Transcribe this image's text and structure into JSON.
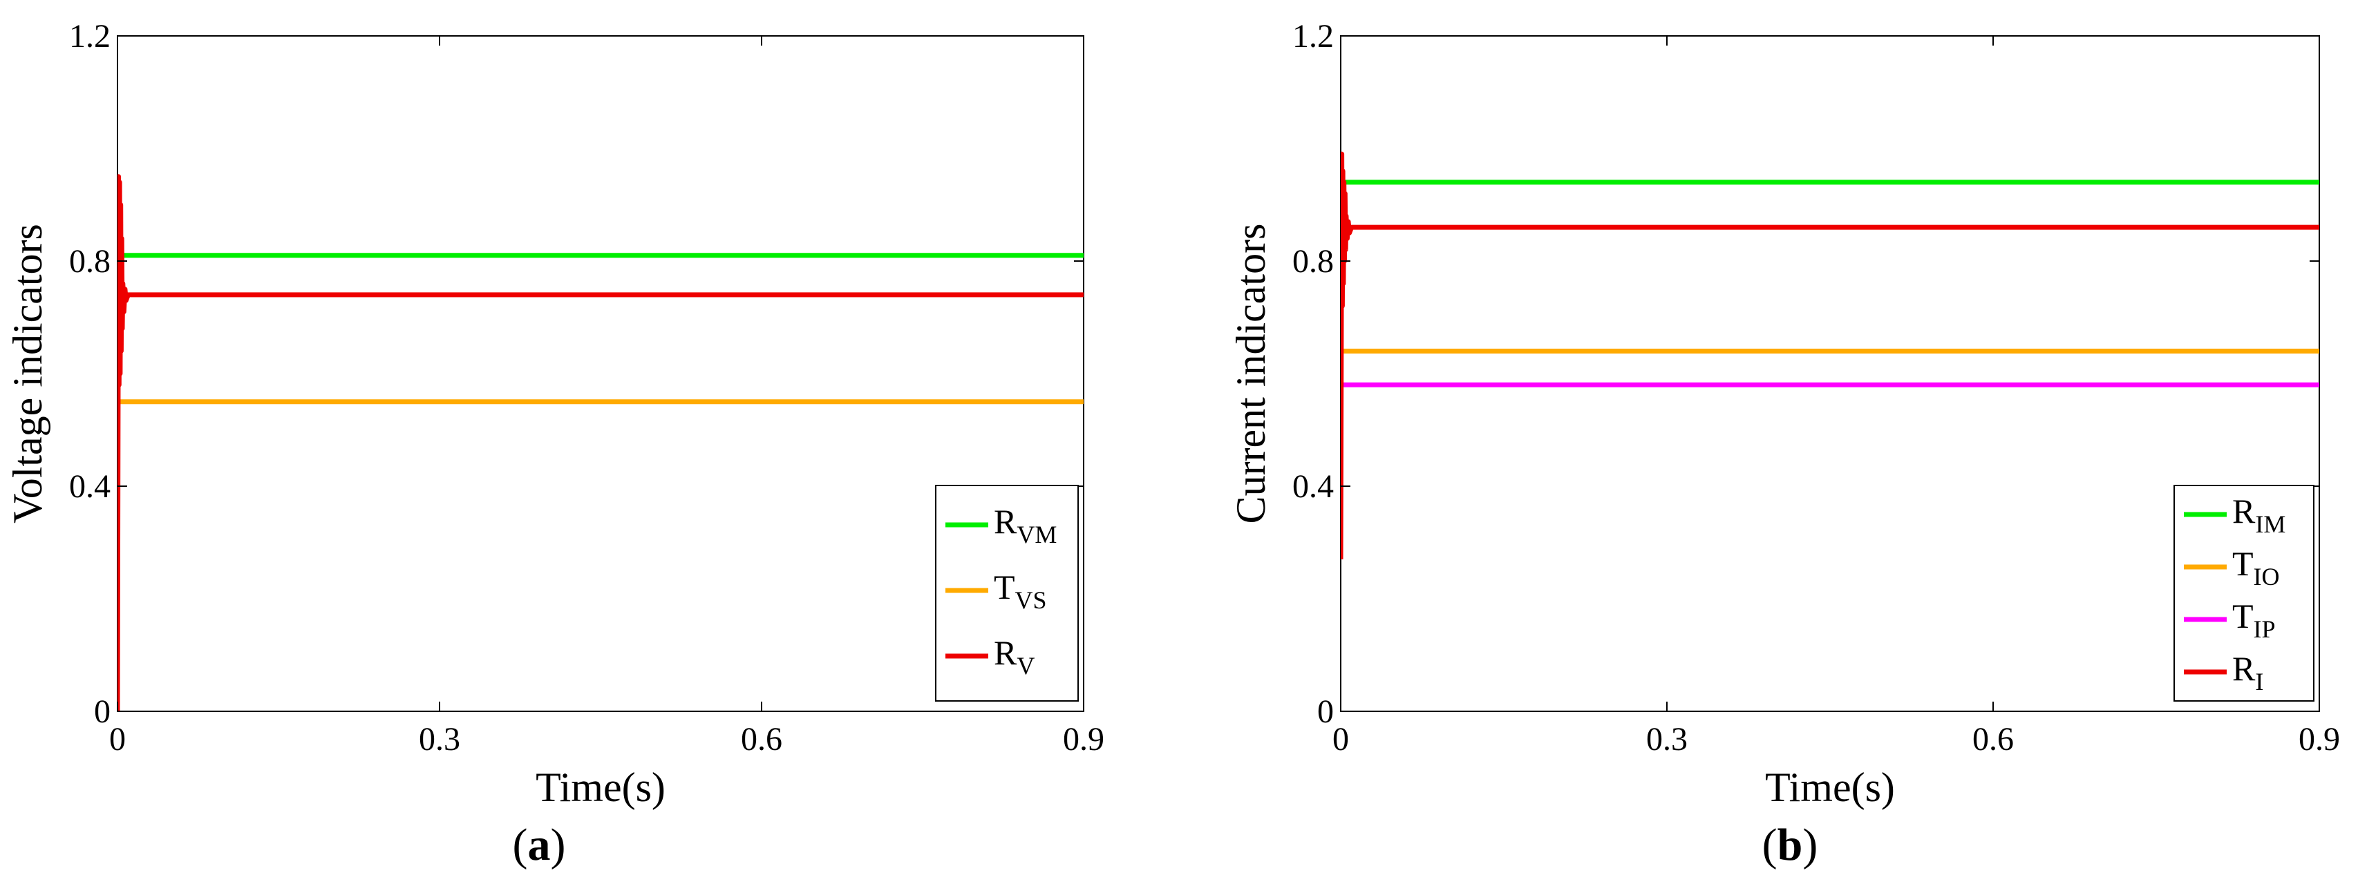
{
  "chart_data": [
    {
      "type": "line",
      "panel_label": "a",
      "xlabel": "Time(s)",
      "ylabel": "Voltage indicators",
      "xlim": [
        0,
        0.9
      ],
      "ylim": [
        0,
        1.2
      ],
      "xticks": [
        "0",
        "0.3",
        "0.6",
        "0.9"
      ],
      "yticks": [
        "0",
        "0.4",
        "0.8",
        "1.2"
      ],
      "grid": false,
      "legend_position": "bottom-right",
      "series": [
        {
          "name": "R",
          "sub": "VM",
          "color": "#00ee00",
          "x": [
            0,
            0.9
          ],
          "y": [
            0.81,
            0.81
          ]
        },
        {
          "name": "T",
          "sub": "VS",
          "color": "#ffaa00",
          "x": [
            0,
            0.9
          ],
          "y": [
            0.55,
            0.55
          ]
        },
        {
          "name": "R",
          "sub": "V",
          "color": "#ee0000",
          "x": [
            0,
            0.001,
            0.0015,
            0.002,
            0.0025,
            0.003,
            0.0035,
            0.004,
            0.0045,
            0.005,
            0.006,
            0.007,
            0.008,
            0.01,
            0.9
          ],
          "y": [
            0,
            0.95,
            0.58,
            0.94,
            0.6,
            0.9,
            0.64,
            0.84,
            0.68,
            0.76,
            0.71,
            0.75,
            0.73,
            0.74,
            0.74
          ]
        }
      ]
    },
    {
      "type": "line",
      "panel_label": "b",
      "xlabel": "Time(s)",
      "ylabel": "Current indicators",
      "xlim": [
        0,
        0.9
      ],
      "ylim": [
        0,
        1.2
      ],
      "xticks": [
        "0",
        "0.3",
        "0.6",
        "0.9"
      ],
      "yticks": [
        "0",
        "0.4",
        "0.8",
        "1.2"
      ],
      "grid": false,
      "legend_position": "bottom-right",
      "series": [
        {
          "name": "R",
          "sub": "IM",
          "color": "#00ee00",
          "x": [
            0,
            0.9
          ],
          "y": [
            0.94,
            0.94
          ]
        },
        {
          "name": "T",
          "sub": "IO",
          "color": "#ffaa00",
          "x": [
            0,
            0.9
          ],
          "y": [
            0.64,
            0.64
          ]
        },
        {
          "name": "T",
          "sub": "IP",
          "color": "#ff00ff",
          "x": [
            0,
            0.9
          ],
          "y": [
            0.58,
            0.58
          ]
        },
        {
          "name": "R",
          "sub": "I",
          "color": "#ee0000",
          "x": [
            0,
            0.001,
            0.0015,
            0.002,
            0.0025,
            0.003,
            0.0035,
            0.004,
            0.0045,
            0.005,
            0.006,
            0.007,
            0.008,
            0.01,
            0.9
          ],
          "y": [
            0.27,
            0.99,
            0.72,
            0.96,
            0.76,
            0.94,
            0.8,
            0.92,
            0.82,
            0.88,
            0.84,
            0.87,
            0.85,
            0.86,
            0.86
          ]
        }
      ]
    }
  ]
}
